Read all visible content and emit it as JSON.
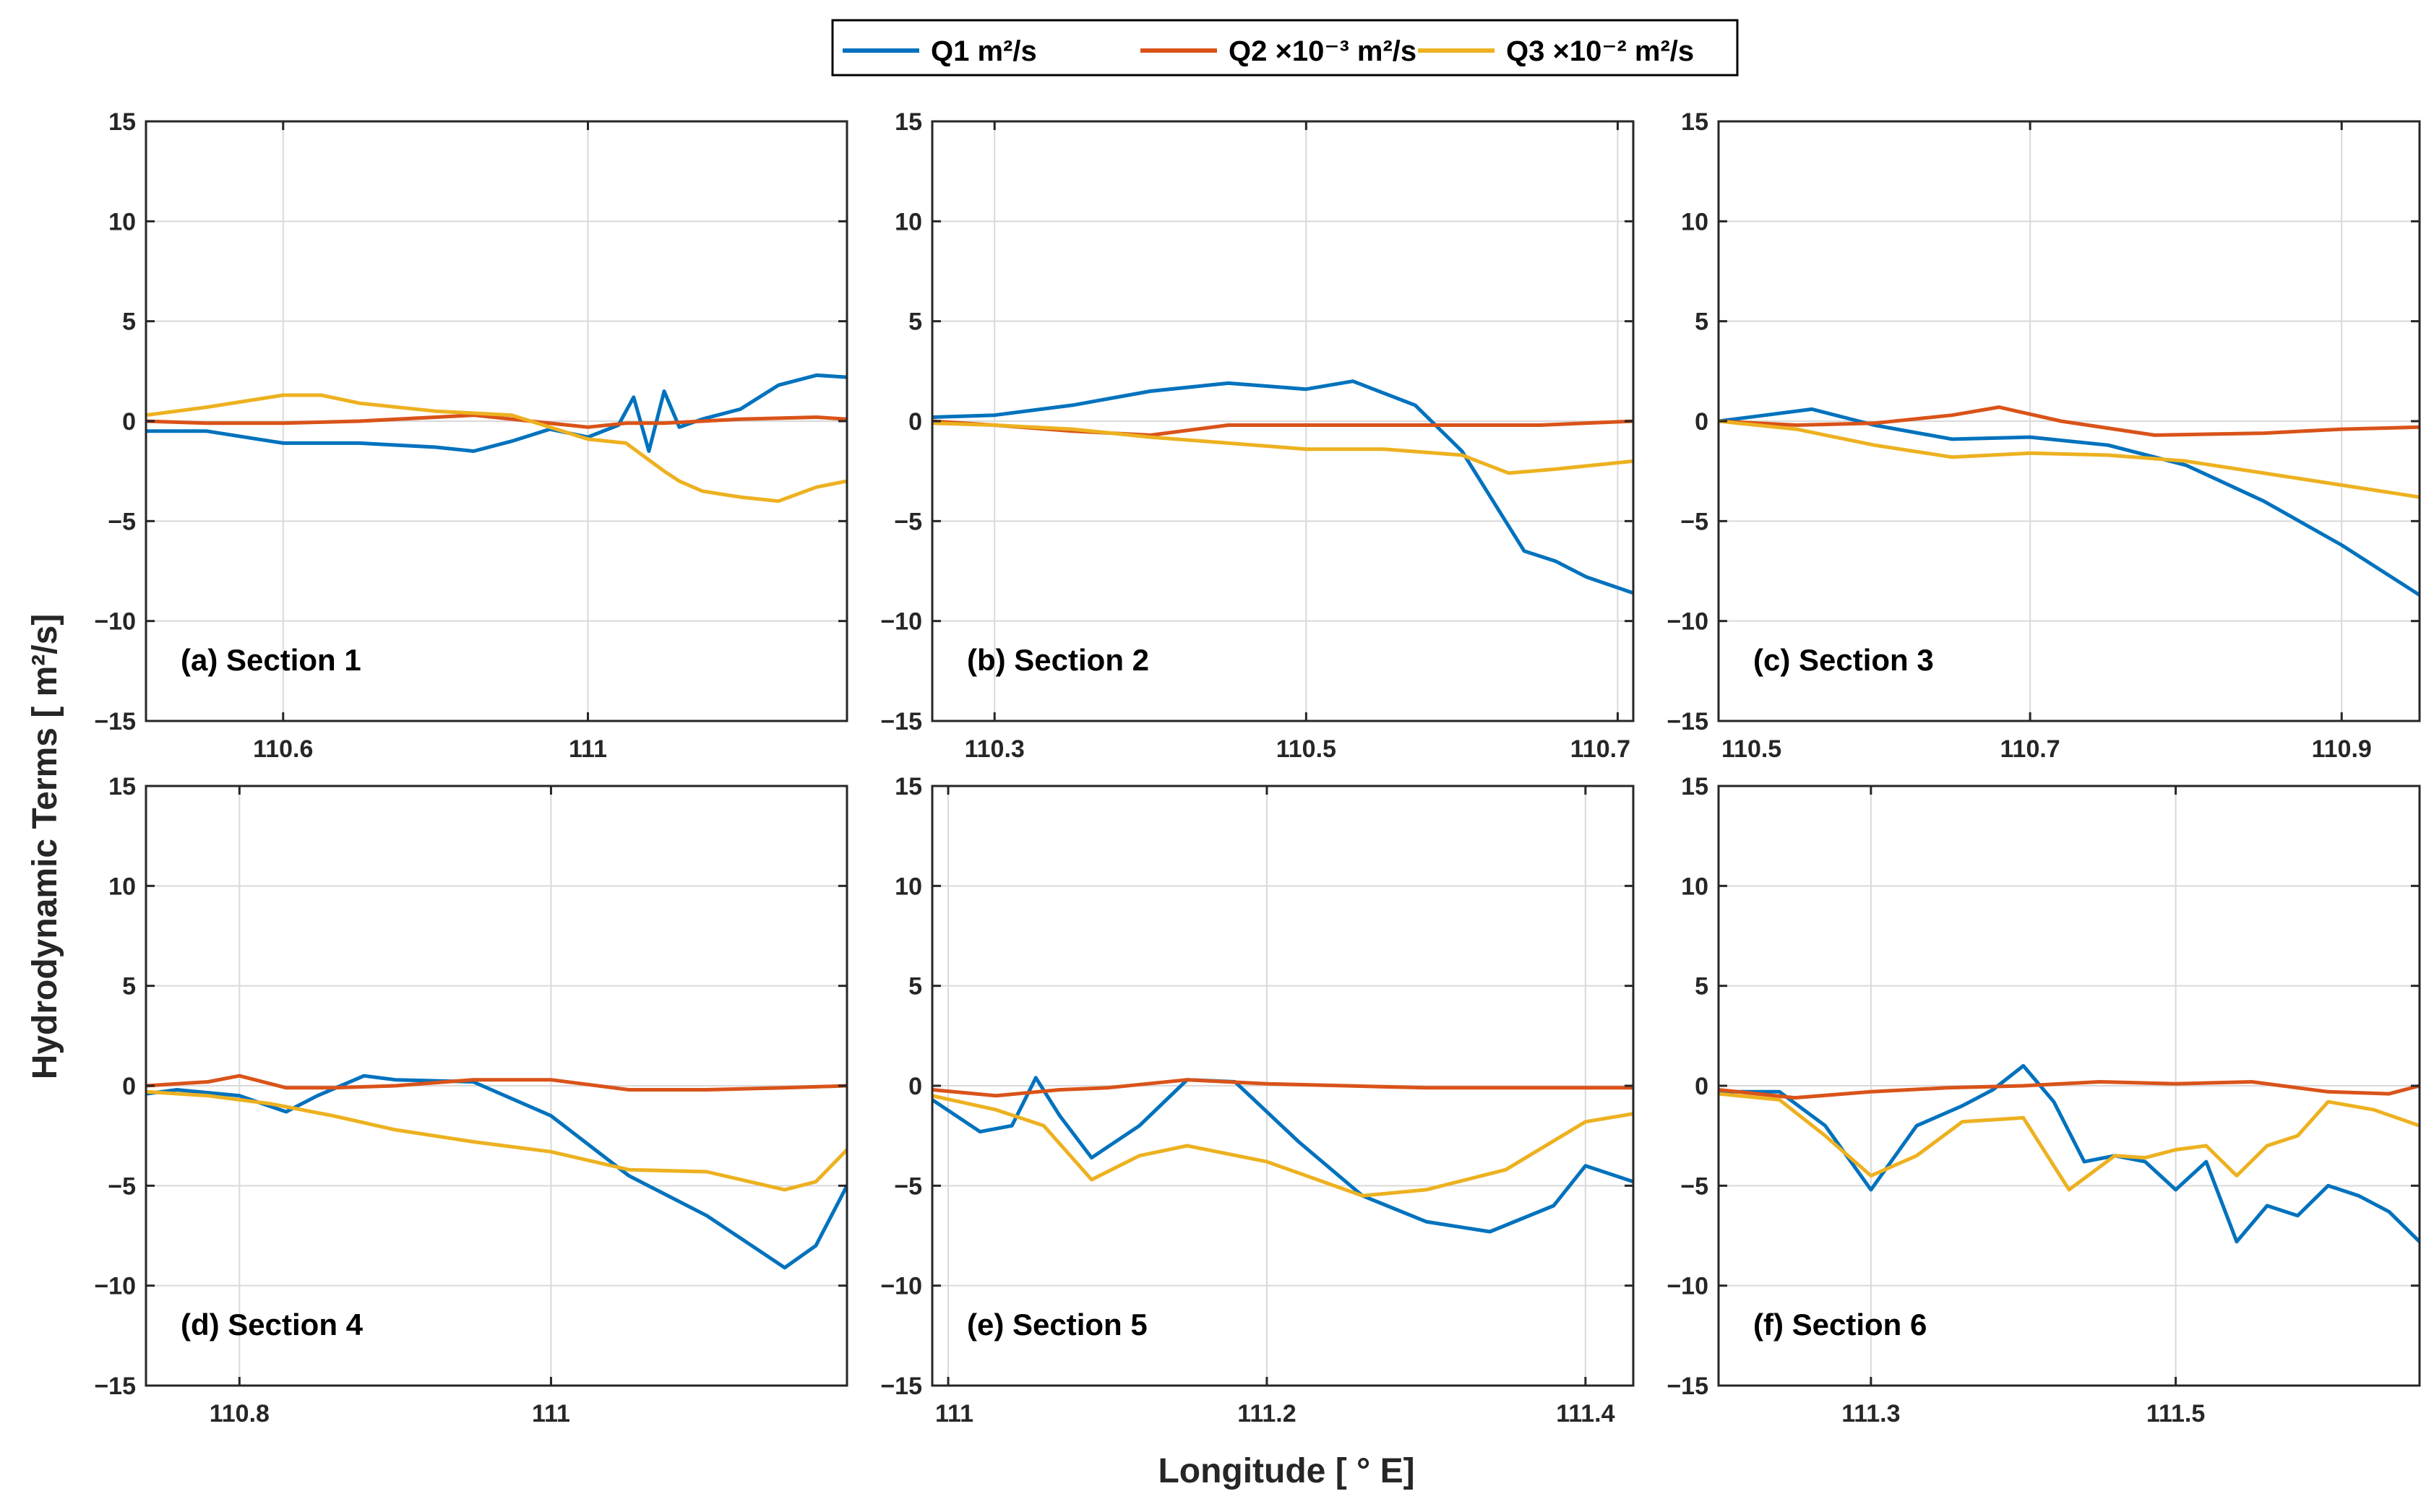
{
  "figure": {
    "ylabel": "Hydrodynamic Terms [ m²/s]",
    "xlabel": "Longitude [ ° E]"
  },
  "legend": [
    {
      "key": "Q1",
      "label": "Q1 m²/s",
      "color": "#0072BD"
    },
    {
      "key": "Q2",
      "label": "Q2 ×10⁻³ m²/s",
      "color": "#D95319"
    },
    {
      "key": "Q3",
      "label": "Q3 ×10⁻² m²/s",
      "color": "#EDB120"
    }
  ],
  "chart_data": [
    {
      "type": "line",
      "title": "(a) Section 1",
      "xlim": [
        110.42,
        111.34
      ],
      "ylim": [
        -15,
        15
      ],
      "xticks": [
        110.6,
        111
      ],
      "xticklabels": [
        "110.6",
        "111"
      ],
      "yticks": [
        -15,
        -10,
        -5,
        0,
        5,
        10,
        15
      ],
      "series": [
        {
          "name": "Q1",
          "x": [
            110.42,
            110.5,
            110.6,
            110.7,
            110.8,
            110.85,
            110.9,
            110.95,
            111.0,
            111.04,
            111.06,
            111.08,
            111.1,
            111.12,
            111.15,
            111.2,
            111.25,
            111.3,
            111.34
          ],
          "y": [
            -0.5,
            -0.5,
            -1.1,
            -1.1,
            -1.3,
            -1.5,
            -1.0,
            -0.4,
            -0.8,
            -0.2,
            1.2,
            -1.5,
            1.5,
            -0.3,
            0.1,
            0.6,
            1.8,
            2.3,
            2.2
          ]
        },
        {
          "name": "Q2",
          "x": [
            110.42,
            110.5,
            110.6,
            110.7,
            110.8,
            110.85,
            110.9,
            110.95,
            111.0,
            111.05,
            111.1,
            111.2,
            111.3,
            111.34
          ],
          "y": [
            0.0,
            -0.1,
            -0.1,
            0.0,
            0.2,
            0.3,
            0.1,
            -0.1,
            -0.3,
            -0.1,
            -0.1,
            0.1,
            0.2,
            0.1
          ]
        },
        {
          "name": "Q3",
          "x": [
            110.42,
            110.5,
            110.6,
            110.65,
            110.7,
            110.8,
            110.85,
            110.9,
            110.95,
            111.0,
            111.05,
            111.1,
            111.12,
            111.15,
            111.2,
            111.25,
            111.3,
            111.34
          ],
          "y": [
            0.3,
            0.7,
            1.3,
            1.3,
            0.9,
            0.5,
            0.4,
            0.3,
            -0.3,
            -0.9,
            -1.1,
            -2.5,
            -3.0,
            -3.5,
            -3.8,
            -4.0,
            -3.3,
            -3.0
          ]
        }
      ]
    },
    {
      "type": "line",
      "title": "(b) Section 2",
      "xlim": [
        110.26,
        110.71
      ],
      "ylim": [
        -15,
        15
      ],
      "xticks": [
        110.3,
        110.5,
        110.7
      ],
      "xticklabels": [
        "110.3",
        "110.5",
        "110.7"
      ],
      "yticks": [
        -15,
        -10,
        -5,
        0,
        5,
        10,
        15
      ],
      "series": [
        {
          "name": "Q1",
          "x": [
            110.26,
            110.3,
            110.35,
            110.4,
            110.45,
            110.5,
            110.53,
            110.57,
            110.6,
            110.62,
            110.64,
            110.66,
            110.68,
            110.71
          ],
          "y": [
            0.2,
            0.3,
            0.8,
            1.5,
            1.9,
            1.6,
            2.0,
            0.8,
            -1.5,
            -4.0,
            -6.5,
            -7.0,
            -7.8,
            -8.6
          ]
        },
        {
          "name": "Q2",
          "x": [
            110.26,
            110.3,
            110.35,
            110.4,
            110.45,
            110.5,
            110.55,
            110.6,
            110.65,
            110.71
          ],
          "y": [
            0.0,
            -0.2,
            -0.5,
            -0.7,
            -0.2,
            -0.2,
            -0.2,
            -0.2,
            -0.2,
            0.0
          ]
        },
        {
          "name": "Q3",
          "x": [
            110.26,
            110.3,
            110.35,
            110.4,
            110.45,
            110.5,
            110.55,
            110.6,
            110.63,
            110.66,
            110.71
          ],
          "y": [
            -0.1,
            -0.2,
            -0.4,
            -0.8,
            -1.1,
            -1.4,
            -1.4,
            -1.7,
            -2.6,
            -2.4,
            -2.0
          ]
        }
      ]
    },
    {
      "type": "line",
      "title": "(c) Section 3",
      "xlim": [
        110.5,
        110.95
      ],
      "ylim": [
        -15,
        15
      ],
      "xticks": [
        110.5,
        110.7,
        110.9
      ],
      "xticklabels": [
        "110.5",
        "110.7",
        "110.9"
      ],
      "yticks": [
        -15,
        -10,
        -5,
        0,
        5,
        10,
        15
      ],
      "series": [
        {
          "name": "Q1",
          "x": [
            110.5,
            110.53,
            110.56,
            110.6,
            110.65,
            110.7,
            110.75,
            110.8,
            110.85,
            110.9,
            110.95
          ],
          "y": [
            0.0,
            0.3,
            0.6,
            -0.2,
            -0.9,
            -0.8,
            -1.2,
            -2.2,
            -4.0,
            -6.2,
            -8.7
          ]
        },
        {
          "name": "Q2",
          "x": [
            110.5,
            110.55,
            110.6,
            110.65,
            110.68,
            110.72,
            110.78,
            110.85,
            110.9,
            110.95
          ],
          "y": [
            0.0,
            -0.2,
            -0.1,
            0.3,
            0.7,
            0.0,
            -0.7,
            -0.6,
            -0.4,
            -0.3
          ]
        },
        {
          "name": "Q3",
          "x": [
            110.5,
            110.55,
            110.6,
            110.65,
            110.7,
            110.75,
            110.8,
            110.85,
            110.9,
            110.95
          ],
          "y": [
            0.0,
            -0.4,
            -1.2,
            -1.8,
            -1.6,
            -1.7,
            -2.0,
            -2.6,
            -3.2,
            -3.8
          ]
        }
      ]
    },
    {
      "type": "line",
      "title": "(d) Section 4",
      "xlim": [
        110.74,
        111.19
      ],
      "ylim": [
        -15,
        15
      ],
      "xticks": [
        110.8,
        111
      ],
      "xticklabels": [
        "110.8",
        "111"
      ],
      "yticks": [
        -15,
        -10,
        -5,
        0,
        5,
        10,
        15
      ],
      "series": [
        {
          "name": "Q1",
          "x": [
            110.74,
            110.76,
            110.8,
            110.83,
            110.85,
            110.88,
            110.9,
            110.95,
            111.0,
            111.05,
            111.1,
            111.15,
            111.17,
            111.19
          ],
          "y": [
            -0.4,
            -0.2,
            -0.5,
            -1.3,
            -0.5,
            0.5,
            0.3,
            0.2,
            -1.5,
            -4.5,
            -6.5,
            -9.1,
            -8.0,
            -5.0
          ]
        },
        {
          "name": "Q2",
          "x": [
            110.74,
            110.78,
            110.8,
            110.83,
            110.86,
            110.9,
            110.95,
            111.0,
            111.05,
            111.1,
            111.15,
            111.19
          ],
          "y": [
            0.0,
            0.2,
            0.5,
            -0.1,
            -0.1,
            0.0,
            0.3,
            0.3,
            -0.2,
            -0.2,
            -0.1,
            0.0
          ]
        },
        {
          "name": "Q3",
          "x": [
            110.74,
            110.78,
            110.82,
            110.86,
            110.9,
            110.95,
            111.0,
            111.05,
            111.1,
            111.15,
            111.17,
            111.19
          ],
          "y": [
            -0.3,
            -0.5,
            -0.9,
            -1.5,
            -2.2,
            -2.8,
            -3.3,
            -4.2,
            -4.3,
            -5.2,
            -4.8,
            -3.2
          ]
        }
      ]
    },
    {
      "type": "line",
      "title": "(e) Section 5",
      "xlim": [
        110.99,
        111.43
      ],
      "ylim": [
        -15,
        15
      ],
      "xticks": [
        111,
        111.2,
        111.4
      ],
      "xticklabels": [
        "111",
        "111.2",
        "111.4"
      ],
      "yticks": [
        -15,
        -10,
        -5,
        0,
        5,
        10,
        15
      ],
      "series": [
        {
          "name": "Q1",
          "x": [
            110.99,
            111.02,
            111.04,
            111.055,
            111.07,
            111.09,
            111.12,
            111.15,
            111.18,
            111.22,
            111.26,
            111.3,
            111.34,
            111.38,
            111.4,
            111.43
          ],
          "y": [
            -0.7,
            -2.3,
            -2.0,
            0.4,
            -1.5,
            -3.6,
            -2.0,
            0.3,
            0.2,
            -2.8,
            -5.5,
            -6.8,
            -7.3,
            -6.0,
            -4.0,
            -4.8
          ]
        },
        {
          "name": "Q2",
          "x": [
            110.99,
            111.03,
            111.07,
            111.1,
            111.15,
            111.2,
            111.25,
            111.3,
            111.35,
            111.43
          ],
          "y": [
            -0.2,
            -0.5,
            -0.2,
            -0.1,
            0.3,
            0.1,
            0.0,
            -0.1,
            -0.1,
            -0.1
          ]
        },
        {
          "name": "Q3",
          "x": [
            110.99,
            111.03,
            111.06,
            111.09,
            111.12,
            111.15,
            111.2,
            111.26,
            111.3,
            111.35,
            111.4,
            111.43
          ],
          "y": [
            -0.5,
            -1.2,
            -2.0,
            -4.7,
            -3.5,
            -3.0,
            -3.8,
            -5.5,
            -5.2,
            -4.2,
            -1.8,
            -1.4
          ]
        }
      ]
    },
    {
      "type": "line",
      "title": "(f) Section 6",
      "xlim": [
        111.2,
        111.66
      ],
      "ylim": [
        -15,
        15
      ],
      "xticks": [
        111.3,
        111.5
      ],
      "xticklabels": [
        "111.3",
        "111.5"
      ],
      "yticks": [
        -15,
        -10,
        -5,
        0,
        5,
        10,
        15
      ],
      "series": [
        {
          "name": "Q1",
          "x": [
            111.2,
            111.24,
            111.27,
            111.3,
            111.33,
            111.36,
            111.38,
            111.4,
            111.42,
            111.44,
            111.46,
            111.48,
            111.5,
            111.52,
            111.54,
            111.56,
            111.58,
            111.6,
            111.62,
            111.64,
            111.66
          ],
          "y": [
            -0.3,
            -0.3,
            -2.0,
            -5.2,
            -2.0,
            -1.0,
            -0.2,
            1.0,
            -0.8,
            -3.8,
            -3.5,
            -3.8,
            -5.2,
            -3.8,
            -7.8,
            -6.0,
            -6.5,
            -5.0,
            -5.5,
            -6.3,
            -7.8
          ]
        },
        {
          "name": "Q2",
          "x": [
            111.2,
            111.25,
            111.3,
            111.35,
            111.4,
            111.45,
            111.5,
            111.55,
            111.6,
            111.64,
            111.66
          ],
          "y": [
            -0.2,
            -0.6,
            -0.3,
            -0.1,
            0.0,
            0.2,
            0.1,
            0.2,
            -0.3,
            -0.4,
            0.0
          ]
        },
        {
          "name": "Q3",
          "x": [
            111.2,
            111.24,
            111.27,
            111.3,
            111.33,
            111.36,
            111.4,
            111.43,
            111.46,
            111.48,
            111.5,
            111.52,
            111.54,
            111.56,
            111.58,
            111.6,
            111.63,
            111.66
          ],
          "y": [
            -0.4,
            -0.7,
            -2.5,
            -4.5,
            -3.5,
            -1.8,
            -1.6,
            -5.2,
            -3.5,
            -3.6,
            -3.2,
            -3.0,
            -4.5,
            -3.0,
            -2.5,
            -0.8,
            -1.2,
            -2.0
          ]
        }
      ]
    }
  ]
}
